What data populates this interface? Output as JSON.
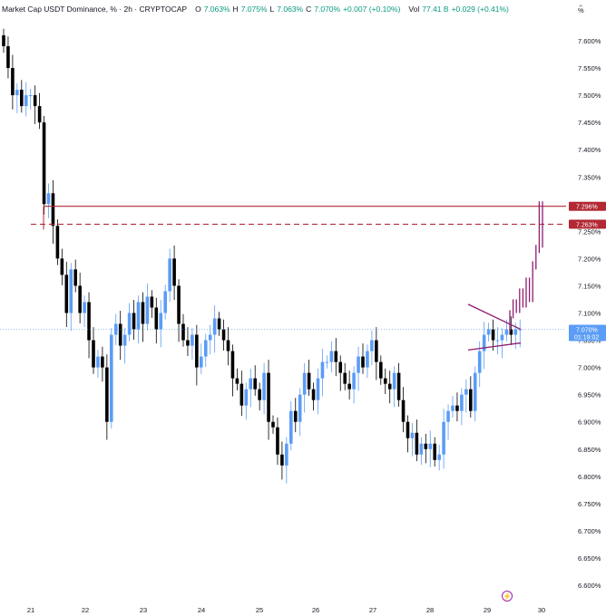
{
  "header": {
    "symbol": "Market Cap USDT Dominance, % · 2h · CRYPTOCAP",
    "o_label": "O",
    "o_value": "7.063%",
    "h_label": "H",
    "h_value": "7.075%",
    "l_label": "L",
    "l_value": "7.063%",
    "c_label": "C",
    "c_value": "7.070%",
    "change": "+0.007 (+0.10%)",
    "vol_label": "Vol",
    "vol_value": "77.41 B",
    "vol_change": "+0.029 (+0.41%)",
    "collapse_icon": "chevron-up-icon"
  },
  "axis": {
    "unit": "%",
    "price_ticks": [
      "7.600%",
      "7.550%",
      "7.500%",
      "7.450%",
      "7.400%",
      "7.350%",
      "7.300%",
      "7.250%",
      "7.200%",
      "7.150%",
      "7.100%",
      "7.050%",
      "7.000%",
      "6.950%",
      "6.900%",
      "6.850%",
      "6.800%",
      "6.750%",
      "6.700%",
      "6.650%",
      "6.600%"
    ],
    "date_ticks": [
      "21",
      "22",
      "23",
      "24",
      "25",
      "26",
      "27",
      "28",
      "29",
      "30"
    ]
  },
  "price_tags": {
    "resistance_high": "7.296%",
    "resistance_low": "7.263%",
    "last_price": "7.070%",
    "countdown": "01:19:02"
  },
  "colors": {
    "up": "#5b9cf6",
    "down": "#000000",
    "level_line": "#b22833",
    "projection": "#8e1b6e",
    "last_price_bg": "#5b9cf6"
  },
  "chart_data": {
    "type": "candlestick",
    "symbol": "USDT.D",
    "timeframe": "2h",
    "y_unit": "%",
    "ylim": [
      6.59,
      7.62
    ],
    "x_labels": [
      "21",
      "22",
      "23",
      "24",
      "25",
      "26",
      "27",
      "28",
      "29",
      "30"
    ],
    "levels": [
      {
        "value": 7.296,
        "style": "solid"
      },
      {
        "value": 7.263,
        "style": "dashed"
      }
    ],
    "last_price": 7.07,
    "closes": [
      7.59,
      7.55,
      7.5,
      7.51,
      7.48,
      7.5,
      7.5,
      7.48,
      7.45,
      7.3,
      7.32,
      7.26,
      7.2,
      7.17,
      7.1,
      7.18,
      7.15,
      7.1,
      7.12,
      7.05,
      7.0,
      7.02,
      7.0,
      6.9,
      7.06,
      7.08,
      7.04,
      7.06,
      7.1,
      7.07,
      7.12,
      7.08,
      7.13,
      7.11,
      7.07,
      7.1,
      7.14,
      7.2,
      7.15,
      7.08,
      7.05,
      7.04,
      7.06,
      7.0,
      7.02,
      7.05,
      7.06,
      7.09,
      7.07,
      7.05,
      7.03,
      6.98,
      6.97,
      6.93,
      6.96,
      6.98,
      6.96,
      6.94,
      6.99,
      6.9,
      6.89,
      6.84,
      6.82,
      6.86,
      6.92,
      6.9,
      6.95,
      6.99,
      6.96,
      6.94,
      6.98,
      7.01,
      7.01,
      7.03,
      7.01,
      6.99,
      6.97,
      6.96,
      6.99,
      7.02,
      7.0,
      7.03,
      7.05,
      7.01,
      6.98,
      6.97,
      6.96,
      6.99,
      6.94,
      6.9,
      6.87,
      6.88,
      6.84,
      6.86,
      6.85,
      6.86,
      6.83,
      6.84,
      6.9,
      6.92,
      6.93,
      6.92,
      6.95,
      6.96,
      6.92,
      6.99,
      7.03,
      7.06,
      7.07,
      7.05,
      7.05,
      7.06,
      7.07,
      7.06,
      7.07,
      7.07
    ],
    "projection": [
      7.1,
      7.12,
      7.11,
      7.14,
      7.12,
      7.16,
      7.13,
      7.19,
      7.22,
      7.3,
      7.23
    ]
  }
}
